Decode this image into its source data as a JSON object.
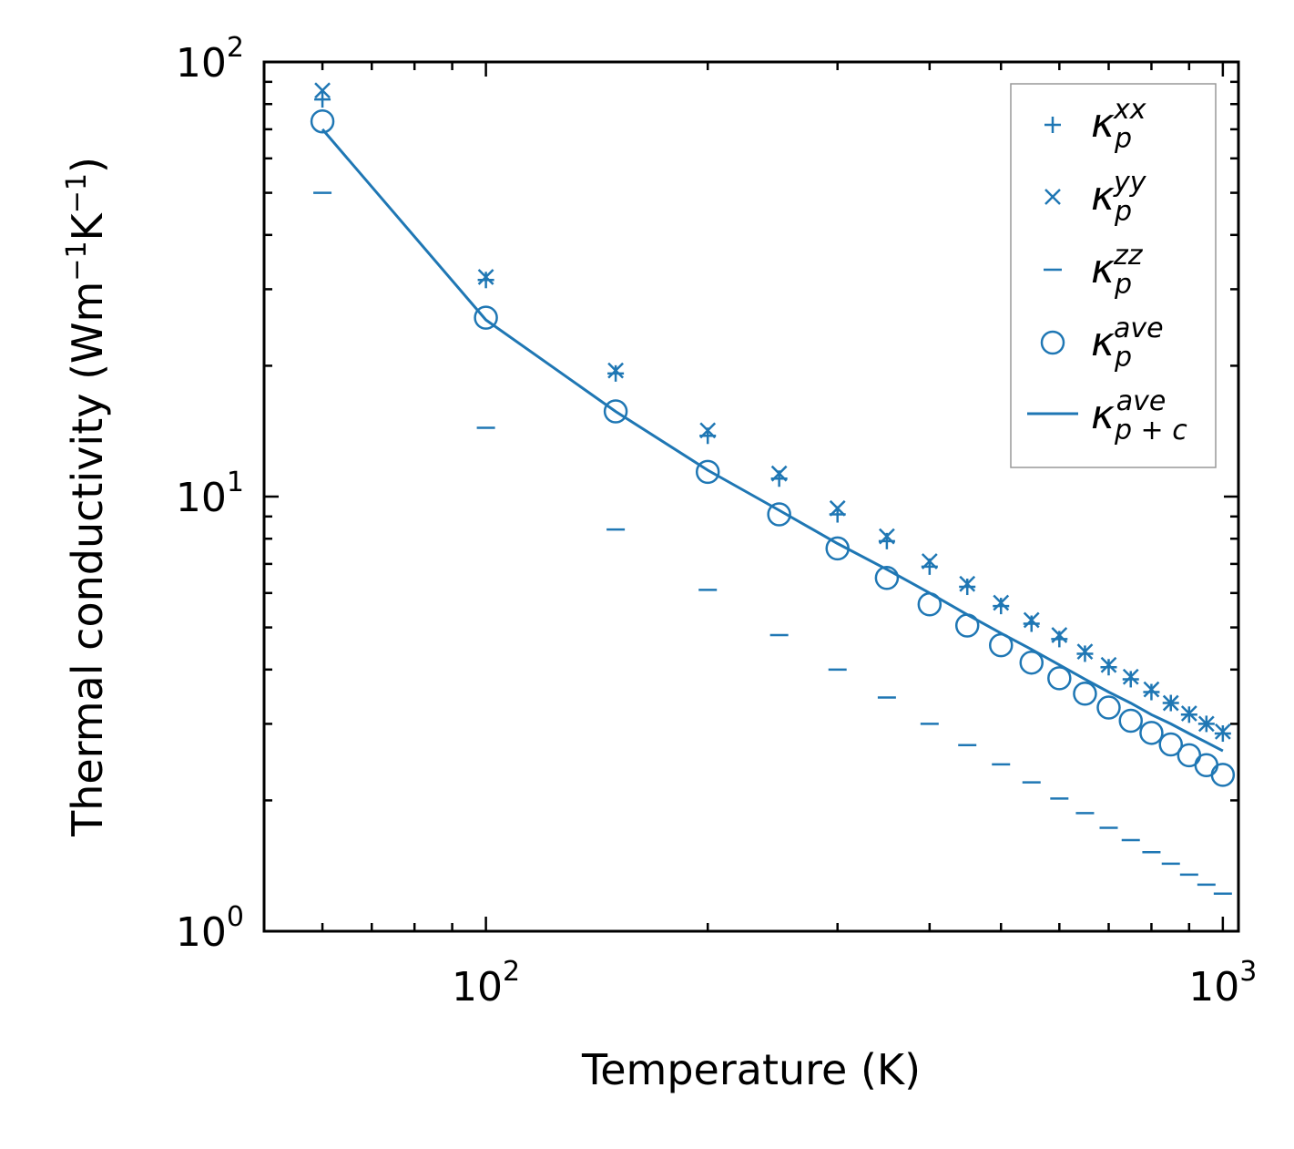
{
  "chart_data": {
    "type": "scatter",
    "xscale": "log",
    "yscale": "log",
    "xlabel": "Temperature (K)",
    "ylabel_parts": {
      "main": "Thermal conductivity (Wm",
      "exp1": "−1",
      "mid": "K",
      "exp2": "−1",
      "end": ")"
    },
    "xlim": [
      50,
      1050
    ],
    "ylim": [
      1,
      100
    ],
    "x_ticks": [
      {
        "value": 100,
        "base": "10",
        "exp": "2"
      },
      {
        "value": 1000,
        "base": "10",
        "exp": "3"
      }
    ],
    "y_ticks": [
      {
        "value": 1,
        "base": "10",
        "exp": "0"
      },
      {
        "value": 10,
        "base": "10",
        "exp": "1"
      },
      {
        "value": 100,
        "base": "10",
        "exp": "2"
      }
    ],
    "color": "#1f77b4",
    "x": [
      60,
      100,
      150,
      200,
      250,
      300,
      350,
      400,
      450,
      500,
      550,
      600,
      650,
      700,
      750,
      800,
      850,
      900,
      950,
      1000
    ],
    "series": [
      {
        "name": "kappa_p_xx",
        "marker": "plus",
        "values": [
          82,
          31.5,
          19.2,
          13.8,
          11.0,
          9.1,
          7.9,
          6.9,
          6.2,
          5.6,
          5.1,
          4.7,
          4.35,
          4.05,
          3.8,
          3.55,
          3.35,
          3.15,
          3.0,
          2.85
        ]
      },
      {
        "name": "kappa_p_yy",
        "marker": "x",
        "values": [
          86,
          32,
          19.5,
          14.2,
          11.3,
          9.4,
          8.1,
          7.1,
          6.3,
          5.7,
          5.2,
          4.8,
          4.4,
          4.1,
          3.85,
          3.6,
          3.35,
          3.17,
          3.0,
          2.88
        ]
      },
      {
        "name": "kappa_p_zz",
        "marker": "hline",
        "values": [
          50,
          14.4,
          8.4,
          6.1,
          4.8,
          4.0,
          3.45,
          3.0,
          2.68,
          2.42,
          2.2,
          2.02,
          1.87,
          1.73,
          1.62,
          1.52,
          1.43,
          1.35,
          1.28,
          1.22
        ]
      },
      {
        "name": "kappa_p_ave",
        "marker": "circle",
        "values": [
          73,
          25.8,
          15.7,
          11.4,
          9.1,
          7.6,
          6.5,
          5.65,
          5.05,
          4.55,
          4.15,
          3.82,
          3.52,
          3.27,
          3.05,
          2.86,
          2.69,
          2.54,
          2.41,
          2.29
        ]
      },
      {
        "name": "kappa_pc_ave",
        "marker": "line",
        "values": [
          70,
          25.5,
          15.7,
          11.5,
          9.3,
          7.8,
          6.8,
          6.0,
          5.35,
          4.85,
          4.45,
          4.1,
          3.8,
          3.55,
          3.35,
          3.15,
          3.0,
          2.85,
          2.72,
          2.6
        ]
      }
    ],
    "legend": {
      "placement": "top-right",
      "entries": [
        {
          "base": "κ",
          "sub": "p",
          "sup": "xx"
        },
        {
          "base": "κ",
          "sub": "p",
          "sup": "yy"
        },
        {
          "base": "κ",
          "sub": "p",
          "sup": "zz"
        },
        {
          "base": "κ",
          "sub": "p",
          "sup": "ave"
        },
        {
          "base": "κ",
          "sub": "p + c",
          "sup": "ave"
        }
      ]
    }
  }
}
